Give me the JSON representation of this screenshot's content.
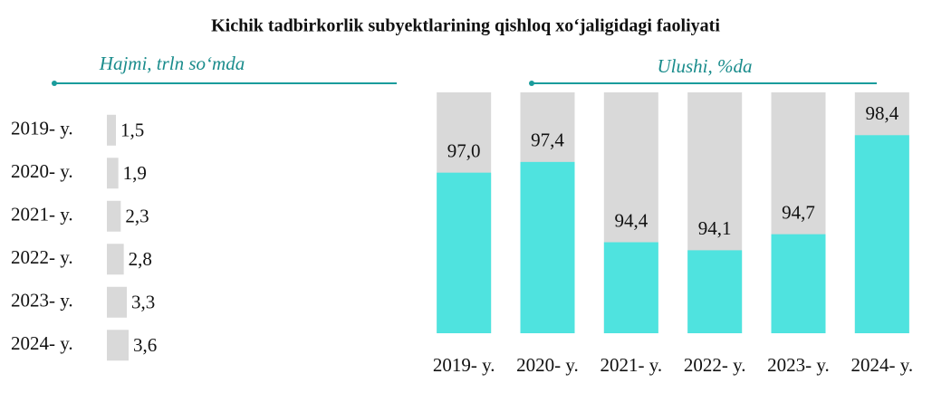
{
  "title": "Kichik tadbirkorlik subyektlarining qishloq xo‘jaligidagi faoliyati",
  "chart_data": [
    {
      "type": "bar",
      "orientation": "horizontal",
      "subtitle": "Hajmi, trln so‘mda",
      "categories": [
        "2019- y.",
        "2020- y.",
        "2021- y.",
        "2022- y.",
        "2023- y.",
        "2024- y."
      ],
      "values": [
        1.5,
        1.9,
        2.3,
        2.8,
        3.3,
        3.6
      ],
      "value_labels": [
        "1,5",
        "1,9",
        "2,3",
        "2,8",
        "3,3",
        "3,6"
      ],
      "color": "#d9d9d9",
      "xlim": [
        0,
        45
      ]
    },
    {
      "type": "bar",
      "subtitle": "Ulushi, %da",
      "categories": [
        "2019- y.",
        "2020- y.",
        "2021- y.",
        "2022- y.",
        "2023- y.",
        "2024- y."
      ],
      "values": [
        97.0,
        97.4,
        94.4,
        94.1,
        94.7,
        98.4
      ],
      "value_labels": [
        "97,0",
        "97,4",
        "94,4",
        "94,1",
        "94,7",
        "98,4"
      ],
      "color": "#4fe3df",
      "background_color": "#d9d9d9",
      "ylim": [
        91,
        100
      ]
    }
  ]
}
